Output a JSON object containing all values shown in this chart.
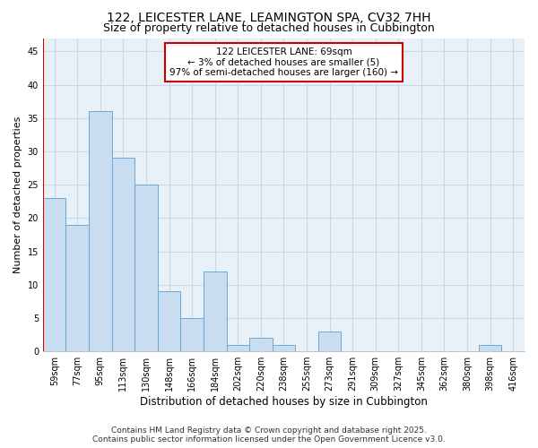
{
  "title": "122, LEICESTER LANE, LEAMINGTON SPA, CV32 7HH",
  "subtitle": "Size of property relative to detached houses in Cubbington",
  "xlabel": "Distribution of detached houses by size in Cubbington",
  "ylabel": "Number of detached properties",
  "categories": [
    "59sqm",
    "77sqm",
    "95sqm",
    "113sqm",
    "130sqm",
    "148sqm",
    "166sqm",
    "184sqm",
    "202sqm",
    "220sqm",
    "238sqm",
    "255sqm",
    "273sqm",
    "291sqm",
    "309sqm",
    "327sqm",
    "345sqm",
    "362sqm",
    "380sqm",
    "398sqm",
    "416sqm"
  ],
  "values": [
    23,
    19,
    36,
    29,
    25,
    9,
    5,
    12,
    1,
    2,
    1,
    0,
    3,
    0,
    0,
    0,
    0,
    0,
    0,
    1,
    0
  ],
  "bar_color": "#c9ddf0",
  "bar_edge_color": "#6aaad4",
  "vline_color": "#dd0000",
  "annotation_text": "122 LEICESTER LANE: 69sqm\n← 3% of detached houses are smaller (5)\n97% of semi-detached houses are larger (160) →",
  "annotation_box_facecolor": "#ffffff",
  "annotation_box_edgecolor": "#cc0000",
  "ylim": [
    0,
    47
  ],
  "yticks": [
    0,
    5,
    10,
    15,
    20,
    25,
    30,
    35,
    40,
    45
  ],
  "footer_line1": "Contains HM Land Registry data © Crown copyright and database right 2025.",
  "footer_line2": "Contains public sector information licensed under the Open Government Licence v3.0.",
  "bg_color": "#ffffff",
  "plot_bg_color": "#e8f0f8",
  "grid_color": "#c8d8e8",
  "title_fontsize": 10,
  "subtitle_fontsize": 9,
  "xlabel_fontsize": 8.5,
  "ylabel_fontsize": 8,
  "tick_fontsize": 7,
  "annot_fontsize": 7.5,
  "footer_fontsize": 6.5
}
